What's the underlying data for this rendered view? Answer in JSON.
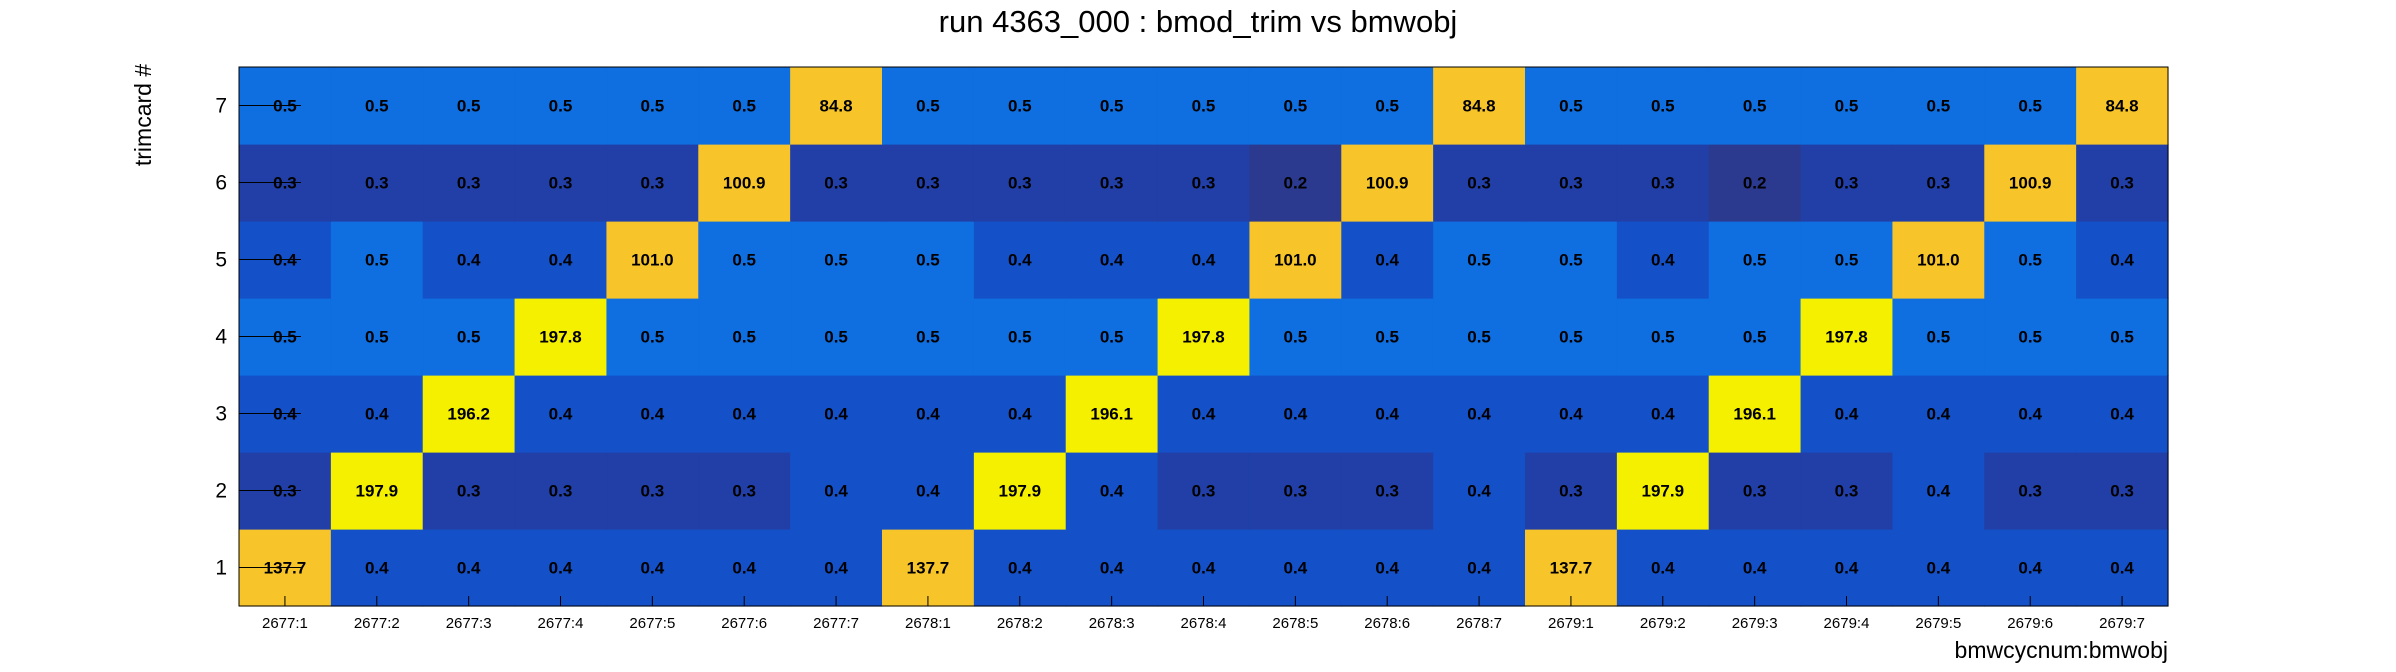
{
  "chart_data": {
    "type": "heatmap",
    "title": "run 4363_000 : bmod_trim vs bmwobj",
    "xlabel": "bmwcycnum:bmwobj",
    "ylabel": "trimcard #",
    "x_categories": [
      "2677:1",
      "2677:2",
      "2677:3",
      "2677:4",
      "2677:5",
      "2677:6",
      "2677:7",
      "2678:1",
      "2678:2",
      "2678:3",
      "2678:4",
      "2678:5",
      "2678:6",
      "2678:7",
      "2679:1",
      "2679:2",
      "2679:3",
      "2679:4",
      "2679:5",
      "2679:6",
      "2679:7"
    ],
    "y_categories": [
      "1",
      "2",
      "3",
      "4",
      "5",
      "6",
      "7"
    ],
    "values": [
      [
        "137.7",
        "0.4",
        "0.4",
        "0.4",
        "0.4",
        "0.4",
        "0.4",
        "137.7",
        "0.4",
        "0.4",
        "0.4",
        "0.4",
        "0.4",
        "0.4",
        "137.7",
        "0.4",
        "0.4",
        "0.4",
        "0.4",
        "0.4",
        "0.4"
      ],
      [
        "0.3",
        "197.9",
        "0.3",
        "0.3",
        "0.3",
        "0.3",
        "0.4",
        "0.4",
        "197.9",
        "0.4",
        "0.3",
        "0.3",
        "0.3",
        "0.4",
        "0.3",
        "197.9",
        "0.3",
        "0.3",
        "0.4",
        "0.3",
        "0.3"
      ],
      [
        "0.4",
        "0.4",
        "196.2",
        "0.4",
        "0.4",
        "0.4",
        "0.4",
        "0.4",
        "0.4",
        "196.1",
        "0.4",
        "0.4",
        "0.4",
        "0.4",
        "0.4",
        "0.4",
        "196.1",
        "0.4",
        "0.4",
        "0.4",
        "0.4"
      ],
      [
        "0.5",
        "0.5",
        "0.5",
        "197.8",
        "0.5",
        "0.5",
        "0.5",
        "0.5",
        "0.5",
        "0.5",
        "197.8",
        "0.5",
        "0.5",
        "0.5",
        "0.5",
        "0.5",
        "0.5",
        "197.8",
        "0.5",
        "0.5",
        "0.5"
      ],
      [
        "0.4",
        "0.5",
        "0.4",
        "0.4",
        "101.0",
        "0.5",
        "0.5",
        "0.5",
        "0.4",
        "0.4",
        "0.4",
        "101.0",
        "0.4",
        "0.5",
        "0.5",
        "0.4",
        "0.5",
        "0.5",
        "101.0",
        "0.5",
        "0.4"
      ],
      [
        "0.3",
        "0.3",
        "0.3",
        "0.3",
        "0.3",
        "100.9",
        "0.3",
        "0.3",
        "0.3",
        "0.3",
        "0.3",
        "0.2",
        "100.9",
        "0.3",
        "0.3",
        "0.3",
        "0.2",
        "0.3",
        "0.3",
        "100.9",
        "0.3"
      ],
      [
        "0.5",
        "0.5",
        "0.5",
        "0.5",
        "0.5",
        "0.5",
        "84.8",
        "0.5",
        "0.5",
        "0.5",
        "0.5",
        "0.5",
        "0.5",
        "84.8",
        "0.5",
        "0.5",
        "0.5",
        "0.5",
        "0.5",
        "0.5",
        "84.8"
      ]
    ],
    "colors": {
      "palette_steps": [
        "#2b3a8f",
        "#213fa6",
        "#1450c7",
        "#1060d8",
        "#0f6ee0",
        "#f7c52a",
        "#f5f000"
      ],
      "high": "#f5f000",
      "mid_high": "#f7c52a",
      "low": "#213fa6"
    },
    "grid": false,
    "legend": "none"
  }
}
